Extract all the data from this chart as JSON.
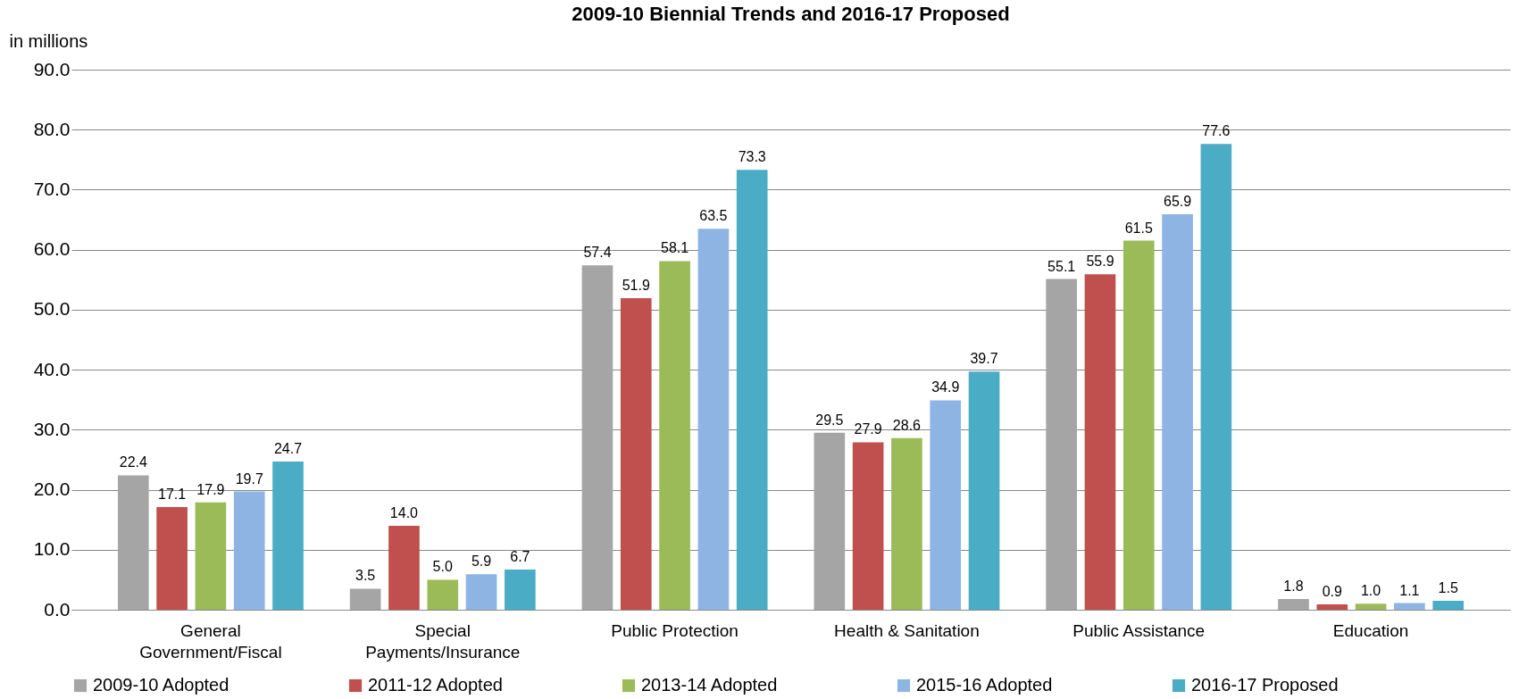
{
  "chart_data": {
    "type": "bar",
    "title": "2009-10 Biennial Trends and 2016-17 Proposed",
    "ylabel": "in millions",
    "categories": [
      "General Government/Fiscal",
      "Special Payments/Insurance",
      "Public Protection",
      "Health & Sanitation",
      "Public Assistance",
      "Education"
    ],
    "series": [
      {
        "name": "2009-10 Adopted",
        "color": "#a5a5a5",
        "values": [
          22.4,
          3.5,
          57.4,
          29.5,
          55.1,
          1.8
        ],
        "value_labels": [
          "22.4",
          "3.5",
          "57.4",
          "29.5",
          "55.1",
          "1.8"
        ]
      },
      {
        "name": "2011-12 Adopted",
        "color": "#c0504d",
        "values": [
          17.1,
          14,
          51.9,
          27.9,
          55.9,
          0.9
        ],
        "value_labels": [
          "17.1",
          "14.0",
          "51.9",
          "27.9",
          "55.9",
          "0.9"
        ]
      },
      {
        "name": "2013-14 Adopted",
        "color": "#9bbb59",
        "values": [
          17.9,
          5,
          58.1,
          28.6,
          61.5,
          1
        ],
        "value_labels": [
          "17.9",
          "5.0",
          "58.1",
          "28.6",
          "61.5",
          "1.0"
        ]
      },
      {
        "name": "2015-16 Adopted",
        "color": "#8eb4e3",
        "values": [
          19.7,
          5.9,
          63.5,
          34.9,
          65.9,
          1.1
        ],
        "value_labels": [
          "19.7",
          "5.9",
          "63.5",
          "34.9",
          "65.9",
          "1.1"
        ]
      },
      {
        "name": "2016-17 Proposed",
        "color": "#4bacc6",
        "values": [
          24.7,
          6.7,
          73.3,
          39.7,
          77.6,
          1.5
        ],
        "value_labels": [
          "24.7",
          "6.7",
          "73.3",
          "39.7",
          "77.6",
          "1.5"
        ]
      }
    ],
    "ylim": [
      0,
      90
    ],
    "yticks": [
      {
        "value": 0,
        "label": "0.0"
      },
      {
        "value": 10,
        "label": "10.0"
      },
      {
        "value": 20,
        "label": "20.0"
      },
      {
        "value": 30,
        "label": "30.0"
      },
      {
        "value": 40,
        "label": "40.0"
      },
      {
        "value": 50,
        "label": "50.0"
      },
      {
        "value": 60,
        "label": "60.0"
      },
      {
        "value": 70,
        "label": "70.0"
      },
      {
        "value": 80,
        "label": "80.0"
      },
      {
        "value": 90,
        "label": "90.0"
      }
    ],
    "grid": "y",
    "legend": "bottom"
  }
}
